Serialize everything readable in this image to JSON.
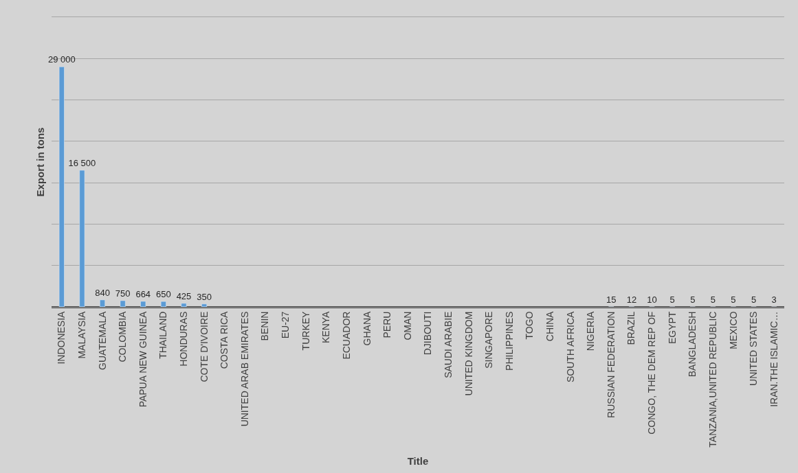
{
  "chart_data": {
    "type": "bar",
    "xlabel": "Title",
    "ylabel": "Export in tons",
    "categories": [
      "INDONESIA",
      "MALAYSIA",
      "GUATEMALA",
      "COLOMBIA",
      "PAPUA NEW GUINEA",
      "THAILAND",
      "HONDURAS",
      "COTE D'IVOIRE",
      "COSTA RICA",
      "UNITED ARAB EMIRATES",
      "BENIN",
      "EU-27",
      "TURKEY",
      "KENYA",
      "ECUADOR",
      "GHANA",
      "PERU",
      "OMAN",
      "DJIBOUTI",
      "SAUDI ARABIE",
      "UNITED KINGDOM",
      "SINGAPORE",
      "PHILIPPINES",
      "TOGO",
      "CHINA",
      "SOUTH AFRICA",
      "NIGERIA",
      "RUSSIAN FEDERATION",
      "BRAZIL",
      "CONGO, THE DEM REP OF",
      "EGYPT",
      "BANGLADESH",
      "TANZANIA,UNITED REPUBLIC",
      "MEXICO",
      "UNITED STATES",
      "IRAN.THE ISLAMIC…"
    ],
    "values": [
      29000,
      16500,
      840,
      750,
      664,
      650,
      425,
      350,
      null,
      null,
      null,
      null,
      null,
      null,
      null,
      null,
      null,
      null,
      null,
      null,
      null,
      null,
      null,
      null,
      null,
      null,
      null,
      15,
      12,
      10,
      5,
      5,
      5,
      5,
      5,
      3
    ],
    "value_labels": [
      "29 000",
      "16 500",
      "840",
      "750",
      "664",
      "650",
      "425",
      "350",
      null,
      null,
      null,
      null,
      null,
      null,
      null,
      null,
      null,
      null,
      null,
      null,
      null,
      null,
      null,
      null,
      null,
      null,
      null,
      "15",
      "12",
      "10",
      "5",
      "5",
      "5",
      "5",
      "5",
      "3"
    ],
    "color": "#5b9bd5",
    "ylim": [
      0,
      35000
    ],
    "yticks": [
      {
        "value": 0,
        "label": null
      },
      {
        "value": 5000,
        "label": null
      },
      {
        "value": 10000,
        "label": null
      },
      {
        "value": 15000,
        "label": null
      },
      {
        "value": 20000,
        "label": null
      },
      {
        "value": 25000,
        "label": null
      },
      {
        "value": 30000,
        "label": null
      },
      {
        "value": 35000,
        "label": null
      }
    ],
    "grid": "y",
    "tick_labels": "x",
    "legend": false
  }
}
